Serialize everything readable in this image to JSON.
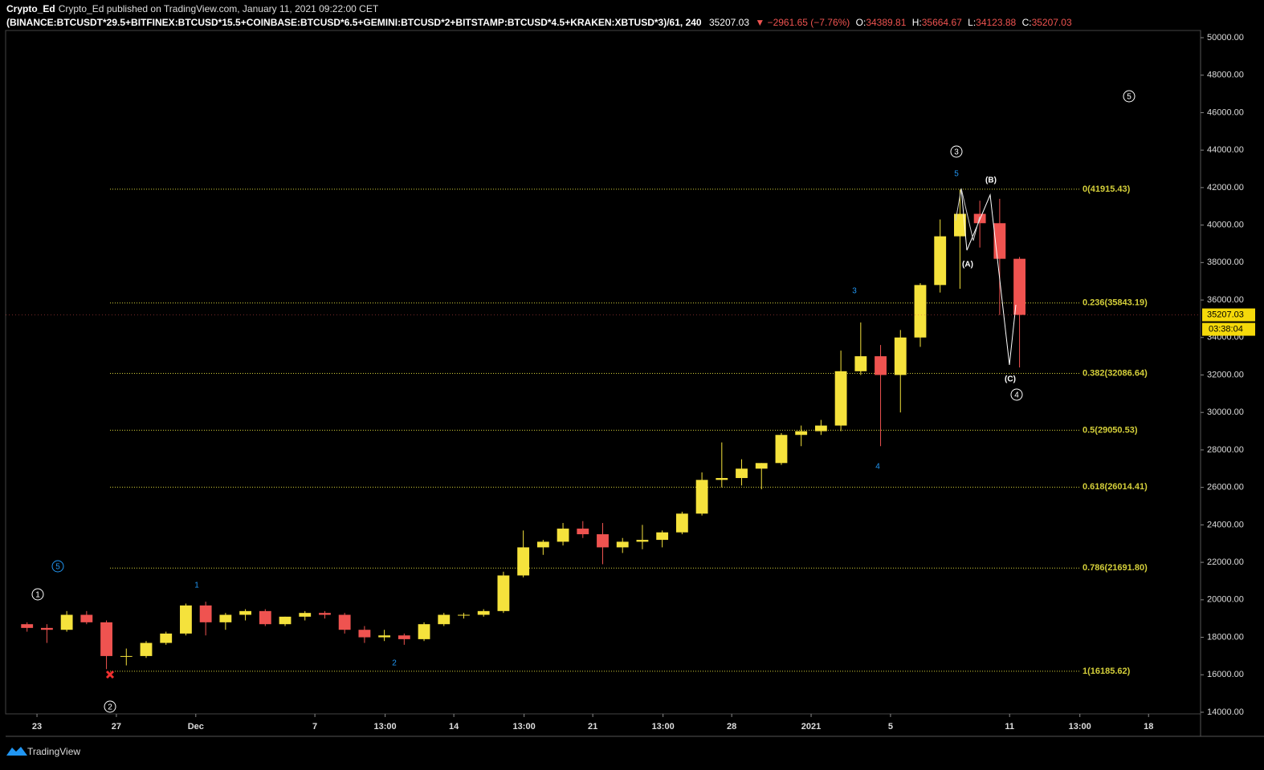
{
  "header": {
    "line1": "Crypto_Ed published on TradingView.com, January 11, 2021 09:22:00 CET",
    "symbol": "(BINANCE:BTCUSDT*29.5+BITFINEX:BTCUSD*15.5+COINBASE:BTCUSD*6.5+GEMINI:BTCUSD*2+BITSTAMP:BTCUSD*4.5+KRAKEN:XBTUSD*3)/61, 240",
    "last": "35207.03",
    "change": "▼ −2961.65 (−7.76%)",
    "o_label": "O:",
    "o": "34389.81",
    "h_label": "H:",
    "h": "35664.67",
    "l_label": "L:",
    "l": "34123.88",
    "c_label": "C:",
    "c": "35207.03"
  },
  "chart_data": {
    "type": "candlestick",
    "xlim": [
      -1.58,
      58.62
    ],
    "ylim": [
      13914,
      50385
    ],
    "xticks": [
      {
        "value": 0,
        "label": "23"
      },
      {
        "value": 4,
        "label": "27"
      },
      {
        "value": 8,
        "label": "Dec"
      },
      {
        "value": 14,
        "label": "7"
      },
      {
        "value": 17.54,
        "label": "13:00"
      },
      {
        "value": 21,
        "label": "14"
      },
      {
        "value": 24.54,
        "label": "13:00"
      },
      {
        "value": 28,
        "label": "21"
      },
      {
        "value": 31.54,
        "label": "13:00"
      },
      {
        "value": 35,
        "label": "28"
      },
      {
        "value": 39,
        "label": "2021"
      },
      {
        "value": 43,
        "label": "5"
      },
      {
        "value": 49,
        "label": "11"
      },
      {
        "value": 52.54,
        "label": "13:00"
      },
      {
        "value": 56,
        "label": "18"
      }
    ],
    "yticks": [
      {
        "value": 14000,
        "label": "14000.00"
      },
      {
        "value": 16000,
        "label": "16000.00"
      },
      {
        "value": 18000,
        "label": "18000.00"
      },
      {
        "value": 20000,
        "label": "20000.00"
      },
      {
        "value": 22000,
        "label": "22000.00"
      },
      {
        "value": 24000,
        "label": "24000.00"
      },
      {
        "value": 26000,
        "label": "26000.00"
      },
      {
        "value": 28000,
        "label": "28000.00"
      },
      {
        "value": 30000,
        "label": "30000.00"
      },
      {
        "value": 32000,
        "label": "32000.00"
      },
      {
        "value": 34000,
        "label": "34000.00"
      },
      {
        "value": 36000,
        "label": "36000.00"
      },
      {
        "value": 38000,
        "label": "38000.00"
      },
      {
        "value": 40000,
        "label": "40000.00"
      },
      {
        "value": 42000,
        "label": "42000.00"
      },
      {
        "value": 44000,
        "label": "44000.00"
      },
      {
        "value": 46000,
        "label": "46000.00"
      },
      {
        "value": 48000,
        "label": "48000.00"
      },
      {
        "value": 50000,
        "label": "50000.00"
      }
    ],
    "up_color": "#f5e23c",
    "down_color": "#ef5350",
    "fib_color": "#d4cf3a",
    "x": [
      -1,
      0,
      1,
      2,
      3,
      4,
      5,
      6,
      7,
      8,
      9,
      10,
      11,
      12,
      13,
      14,
      15,
      16,
      17,
      18,
      19,
      20,
      21,
      22,
      23,
      24,
      25,
      26,
      27,
      28,
      29,
      30,
      31,
      32,
      33,
      34,
      35,
      36,
      37,
      38,
      39,
      40,
      41,
      42,
      43,
      44,
      45,
      46,
      47,
      48,
      49
    ],
    "open": [
      18700,
      18500,
      18400,
      19200,
      18800,
      17000,
      17000,
      17700,
      18200,
      19700,
      18800,
      19200,
      19400,
      18700,
      19100,
      19300,
      19200,
      18400,
      18000,
      18100,
      17900,
      18700,
      19200,
      19200,
      19400,
      21300,
      22800,
      23100,
      23800,
      23500,
      22800,
      23100,
      23200,
      23600,
      24600,
      26400,
      26500,
      27000,
      27300,
      28800,
      29000,
      29300,
      32200,
      33000,
      32000,
      34000,
      36800,
      39400,
      40600,
      40100,
      38200
    ],
    "high": [
      18800,
      18700,
      19400,
      19400,
      18900,
      17400,
      17800,
      18300,
      19800,
      19900,
      19300,
      19500,
      19500,
      19100,
      19400,
      19400,
      19300,
      18600,
      18400,
      18200,
      18800,
      19300,
      19300,
      19500,
      21500,
      23700,
      23200,
      24100,
      24200,
      24100,
      23300,
      24000,
      23700,
      24700,
      26800,
      28400,
      27500,
      27300,
      28900,
      29300,
      29600,
      33300,
      34800,
      33600,
      34400,
      36900,
      40300,
      41900,
      41300,
      41400,
      38300
    ],
    "low": [
      18300,
      17700,
      18300,
      18700,
      16300,
      16500,
      16900,
      17600,
      18100,
      18100,
      18400,
      18900,
      18600,
      18600,
      18900,
      19000,
      18200,
      17700,
      17800,
      17600,
      17800,
      18600,
      19000,
      19100,
      19300,
      21200,
      22400,
      22900,
      23300,
      21900,
      22500,
      22700,
      22800,
      23500,
      24500,
      26000,
      26100,
      25900,
      27200,
      28200,
      28800,
      29000,
      32000,
      28200,
      30000,
      33500,
      36400,
      36600,
      38800,
      35200,
      32400
    ],
    "close": [
      18500,
      18400,
      19200,
      18800,
      17000,
      17000,
      17700,
      18200,
      19700,
      18800,
      19200,
      19400,
      18700,
      19100,
      19300,
      19200,
      18400,
      18000,
      18100,
      17900,
      18700,
      19200,
      19200,
      19400,
      21300,
      22800,
      23100,
      23800,
      23500,
      22800,
      23100,
      23200,
      23600,
      24600,
      26400,
      26500,
      27000,
      27300,
      28800,
      29000,
      29300,
      32200,
      33000,
      32000,
      34000,
      36800,
      39400,
      40600,
      40100,
      38200,
      35207.03
    ],
    "fib_levels": [
      {
        "value": 41915.43,
        "label": "0(41915.43)"
      },
      {
        "value": 35843.19,
        "label": "0.236(35843.19)"
      },
      {
        "value": 32086.64,
        "label": "0.382(32086.64)"
      },
      {
        "value": 29050.53,
        "label": "0.5(29050.53)"
      },
      {
        "value": 26014.41,
        "label": "0.618(26014.41)"
      },
      {
        "value": 21691.8,
        "label": "0.786(21691.80)"
      },
      {
        "value": 16185.62,
        "label": "1(16185.62)"
      }
    ],
    "circled": [
      "1",
      "2",
      "3",
      "4",
      "5",
      "5"
    ],
    "waves": [
      "1",
      "2",
      "3",
      "4",
      "5"
    ],
    "corrective": [
      "(A)",
      "(B)",
      "(C)"
    ],
    "price_tag": "35207.03",
    "countdown": "03:38:04",
    "logo": "TradingView"
  }
}
